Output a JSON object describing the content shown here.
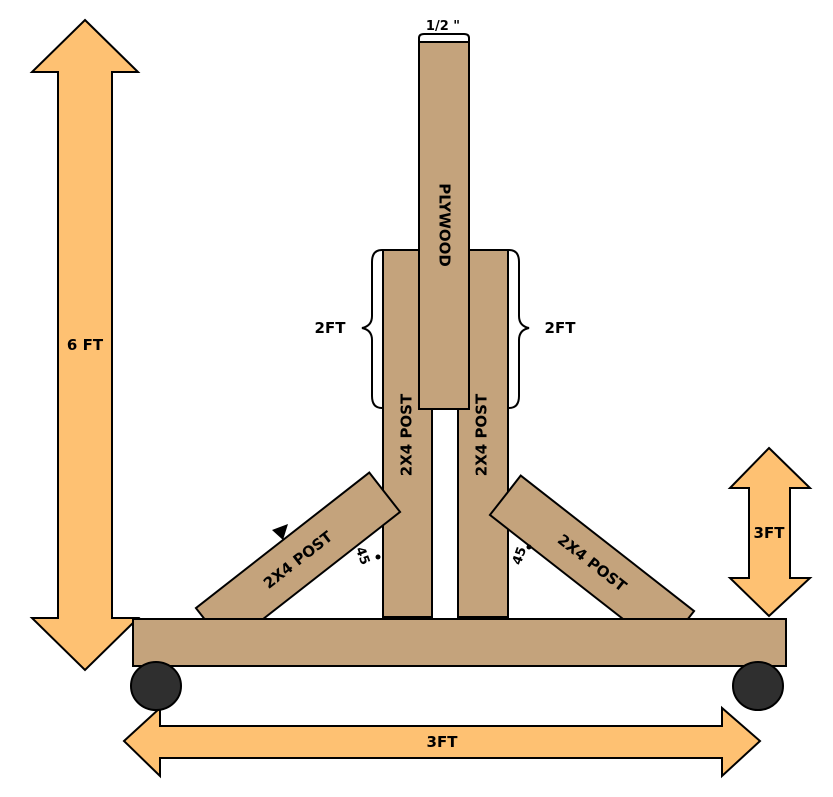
{
  "diagram": {
    "labels": {
      "plywood": "PLYWOOD",
      "post_center_left": "2X4 POST",
      "post_center_right": "2X4 POST",
      "post_diag_left": "2X4 POST",
      "post_diag_right": "2X4 POST",
      "thickness": "1/2 \"",
      "overlap_left": "2FT",
      "overlap_right": "2FT",
      "height_total": "6 FT",
      "height_right": "3FT",
      "width_bottom": "3FT",
      "angle_left": "45",
      "angle_right": "45"
    },
    "colors": {
      "wood": "#c4a37c",
      "arrow": "#fec172",
      "wheel": "#2f2f2f",
      "outline": "#000000"
    }
  }
}
